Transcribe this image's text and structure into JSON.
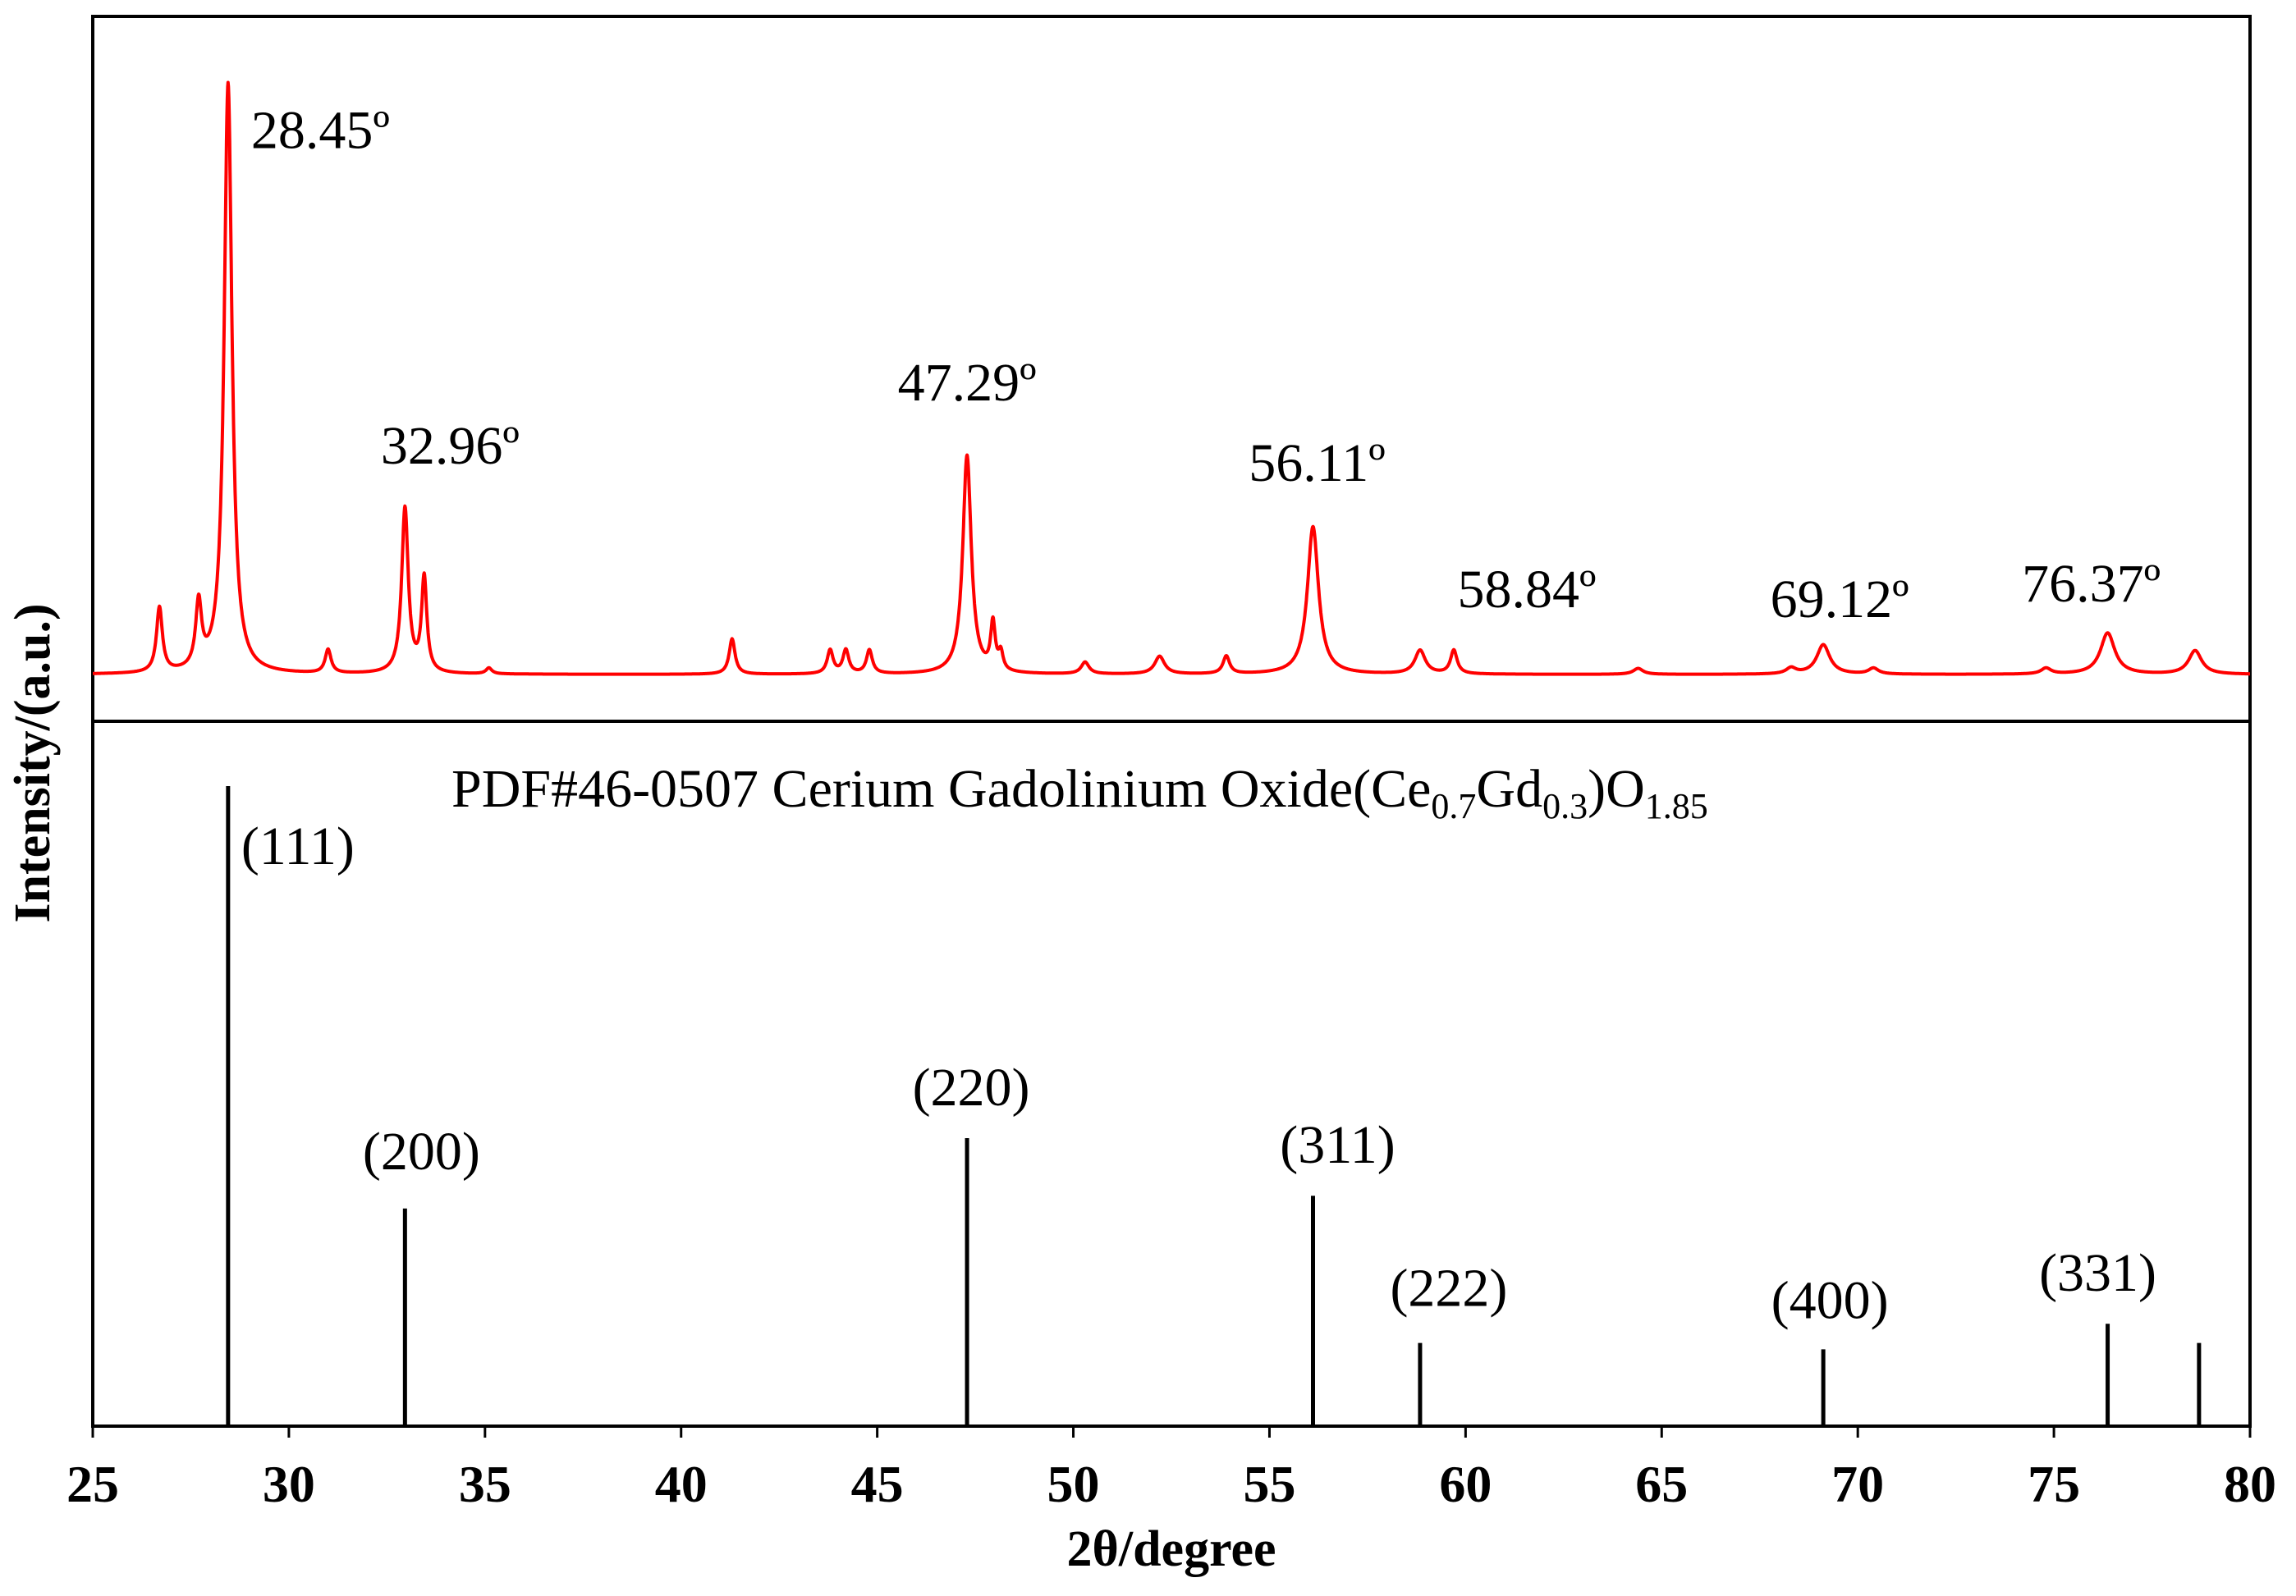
{
  "chart_data": {
    "type": "line",
    "xlabel": "2θ/degree",
    "ylabel": "Intensity/(a.u.)",
    "xlim": [
      25,
      80
    ],
    "x_ticks": [
      "25",
      "30",
      "35",
      "40",
      "45",
      "50",
      "55",
      "60",
      "65",
      "70",
      "75",
      "80"
    ],
    "grid": false,
    "pattern": {
      "baseline": 4.0,
      "peaks": [
        {
          "x": 26.7,
          "h": 11,
          "w": 0.09
        },
        {
          "x": 27.7,
          "h": 11,
          "w": 0.09
        },
        {
          "x": 28.45,
          "h": 100,
          "w": 0.12
        },
        {
          "x": 31.0,
          "h": 4,
          "w": 0.09
        },
        {
          "x": 32.96,
          "h": 28,
          "w": 0.1
        },
        {
          "x": 33.45,
          "h": 16,
          "w": 0.08
        },
        {
          "x": 35.1,
          "h": 1,
          "w": 0.09
        },
        {
          "x": 41.3,
          "h": 6,
          "w": 0.09
        },
        {
          "x": 43.8,
          "h": 4,
          "w": 0.09
        },
        {
          "x": 44.2,
          "h": 4,
          "w": 0.09
        },
        {
          "x": 44.8,
          "h": 4,
          "w": 0.09
        },
        {
          "x": 47.29,
          "h": 37,
          "w": 0.13
        },
        {
          "x": 47.95,
          "h": 8,
          "w": 0.07
        },
        {
          "x": 48.15,
          "h": 3,
          "w": 0.07
        },
        {
          "x": 50.3,
          "h": 2,
          "w": 0.12
        },
        {
          "x": 52.2,
          "h": 3,
          "w": 0.15
        },
        {
          "x": 53.9,
          "h": 3,
          "w": 0.1
        },
        {
          "x": 56.11,
          "h": 25,
          "w": 0.17
        },
        {
          "x": 58.84,
          "h": 4,
          "w": 0.16
        },
        {
          "x": 59.7,
          "h": 4,
          "w": 0.1
        },
        {
          "x": 64.4,
          "h": 1,
          "w": 0.15
        },
        {
          "x": 68.3,
          "h": 1,
          "w": 0.15
        },
        {
          "x": 69.12,
          "h": 5,
          "w": 0.2
        },
        {
          "x": 70.4,
          "h": 1,
          "w": 0.15
        },
        {
          "x": 74.8,
          "h": 1,
          "w": 0.15
        },
        {
          "x": 76.37,
          "h": 7,
          "w": 0.22
        },
        {
          "x": 78.6,
          "h": 4,
          "w": 0.2
        }
      ],
      "peak_labels": [
        {
          "x": 28.45,
          "text": "28.45º"
        },
        {
          "x": 32.96,
          "text": "32.96º"
        },
        {
          "x": 47.29,
          "text": "47.29º"
        },
        {
          "x": 56.11,
          "text": "56.11º"
        },
        {
          "x": 58.84,
          "text": "58.84º"
        },
        {
          "x": 69.12,
          "text": "69.12º"
        },
        {
          "x": 76.37,
          "text": "76.37º"
        }
      ]
    },
    "reference": {
      "title_prefix": "PDF#46-0507 Cerium Gadolinium Oxide(Ce",
      "sub1": "0.7",
      "mid1": "Gd",
      "sub2": "0.3",
      "mid2": ")O",
      "sub3": "1.85",
      "lines": [
        {
          "x": 28.45,
          "value": 100,
          "hkl": "(111)"
        },
        {
          "x": 32.96,
          "value": 34,
          "hkl": "(200)"
        },
        {
          "x": 47.29,
          "value": 45,
          "hkl": "(220)"
        },
        {
          "x": 56.11,
          "value": 36,
          "hkl": "(311)"
        },
        {
          "x": 58.84,
          "value": 13,
          "hkl": "(222)"
        },
        {
          "x": 69.12,
          "value": 12,
          "hkl": "(400)"
        },
        {
          "x": 76.37,
          "value": 16,
          "hkl": "(331)"
        },
        {
          "x": 78.7,
          "value": 13,
          "hkl": ""
        }
      ]
    },
    "colors": {
      "pattern": "#ff0000",
      "reference": "#000000"
    }
  }
}
